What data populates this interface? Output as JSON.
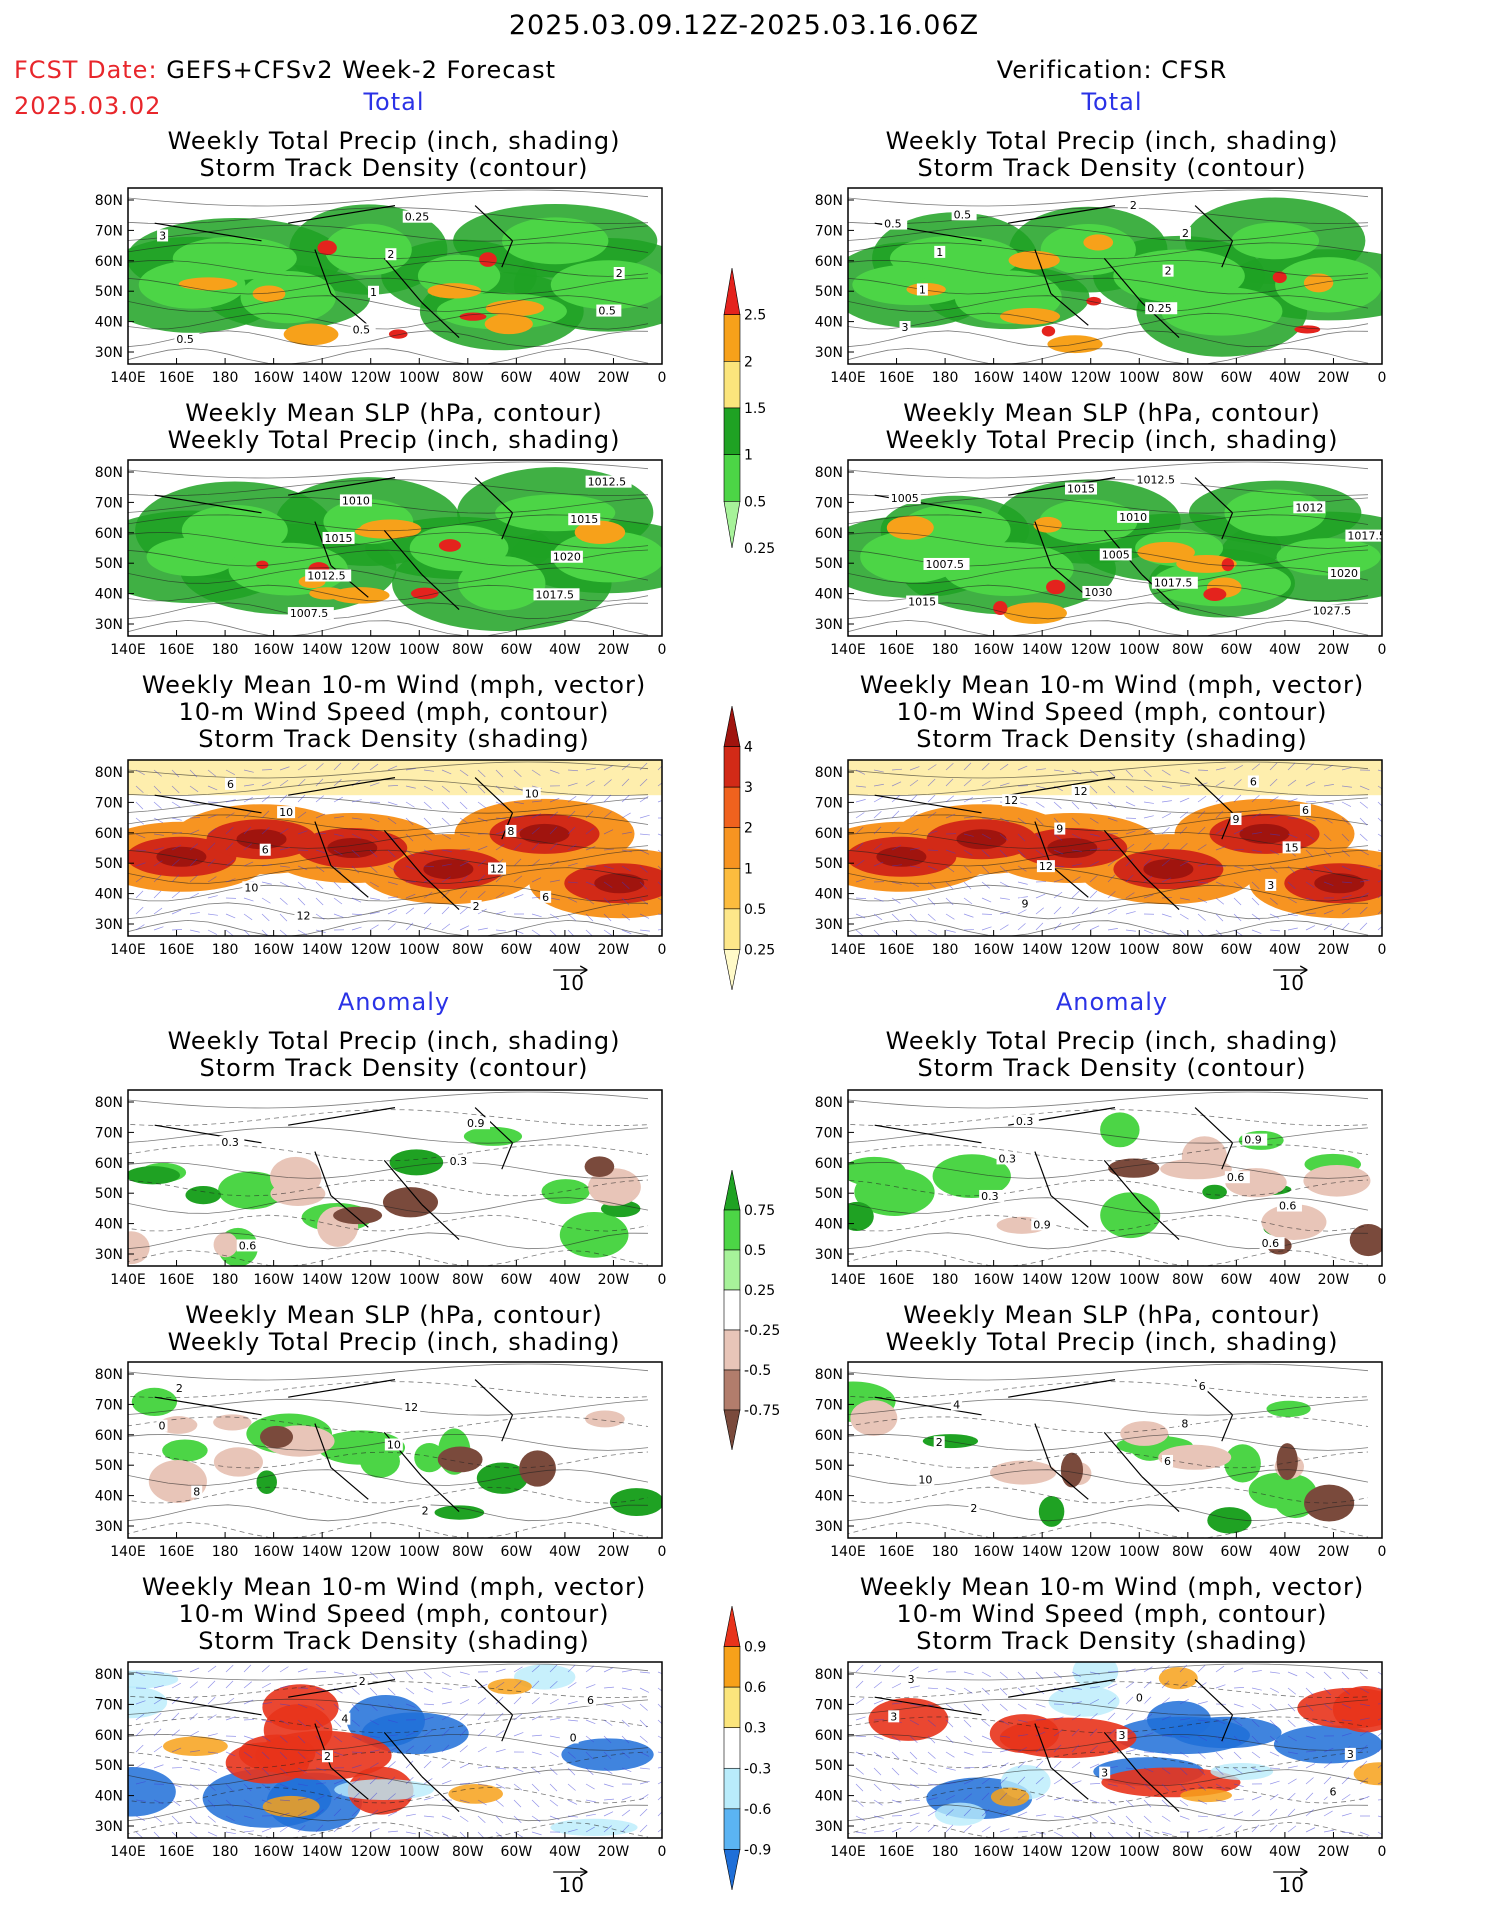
{
  "header": {
    "date_range": "2025.03.09.12Z-2025.03.16.06Z",
    "fcst_label": "FCST Date:",
    "fcst_title": "GEFS+CFSv2 Week-2 Forecast",
    "fcst_date": "2025.03.02",
    "verif_title": "Verification: CFSR"
  },
  "sections": {
    "total": "Total",
    "anomaly": "Anomaly"
  },
  "axis": {
    "lat_labels": [
      "80N",
      "70N",
      "60N",
      "50N",
      "40N",
      "30N"
    ],
    "lon_labels": [
      "140E",
      "160E",
      "180",
      "160W",
      "140W",
      "120W",
      "100W",
      "80W",
      "60W",
      "40W",
      "20W",
      "0"
    ]
  },
  "panel_titles": {
    "precip": [
      "Weekly Total Precip (inch, shading)",
      "Storm Track Density (contour)"
    ],
    "slp": [
      "Weekly Mean SLP (hPa, contour)",
      "Weekly Total Precip (inch, shading)"
    ],
    "wind": [
      "Weekly Mean 10-m Wind (mph, vector)",
      "10-m Wind Speed (mph, contour)",
      "Storm Track Density (shading)"
    ]
  },
  "vector_ref": "10",
  "colorbars": {
    "precip_total": {
      "labels": [
        "2.5",
        "2",
        "1.5",
        "1",
        "0.5",
        "0.25"
      ],
      "colors": [
        "#e4231d",
        "#f7a11a",
        "#fbe57c",
        "#1fa223",
        "#4cd546",
        "#a7f29a"
      ]
    },
    "storm_total": {
      "labels": [
        "4",
        "3",
        "2",
        "1",
        "0.5",
        "0.25"
      ],
      "colors": [
        "#a0140e",
        "#d22a17",
        "#f0621e",
        "#f79421",
        "#fcbc3e",
        "#fde78a",
        "#fffac8"
      ]
    },
    "precip_anom": {
      "labels": [
        "0.75",
        "0.5",
        "0.25",
        "-0.25",
        "-0.5",
        "-0.75"
      ],
      "colors": [
        "#1fa223",
        "#4cd546",
        "#a7f29a",
        "#ffffff",
        "#e8c5b8",
        "#b27d6c",
        "#7a4a3c"
      ]
    },
    "storm_anom": {
      "labels": [
        "0.9",
        "0.6",
        "0.3",
        "-0.3",
        "-0.6",
        "-0.9"
      ],
      "colors": [
        "#e8331b",
        "#f7a11a",
        "#fbe57c",
        "#ffffff",
        "#b9ecfb",
        "#5bb4f3",
        "#1f6fd8"
      ]
    }
  },
  "panels": [
    {
      "id": "fcst-total-precip",
      "kind": "precip",
      "fill": "#4cd546",
      "labels": [
        "0.5",
        "0.5",
        "1",
        "2",
        "2",
        "3",
        "0.25",
        "0.5"
      ]
    },
    {
      "id": "fcst-total-slp",
      "kind": "slp",
      "fill": "#4cd546",
      "labels": [
        "1007.5",
        "1017.5",
        "1012.5",
        "1020",
        "1015",
        "1015",
        "1010",
        "1012.5"
      ]
    },
    {
      "id": "fcst-total-wind",
      "kind": "wind",
      "fill": "#f79421",
      "labels": [
        "6",
        "2",
        "10",
        "12",
        "6",
        "8",
        "10",
        "10",
        "12",
        "6"
      ]
    },
    {
      "id": "verif-total-precip",
      "kind": "precip",
      "fill": "#4cd546",
      "labels": [
        "0.5",
        "2",
        "3",
        "0.25",
        "1",
        "2",
        "1",
        "2",
        "0.5"
      ]
    },
    {
      "id": "verif-total-slp",
      "kind": "slp",
      "fill": "#4cd546",
      "labels": [
        "1012",
        "1015",
        "1027.5",
        "1030",
        "1020",
        "1005",
        "1017.5",
        "1010",
        "1005",
        "1012.5",
        "1015",
        "1017.5",
        "1007.5"
      ]
    },
    {
      "id": "verif-total-wind",
      "kind": "wind",
      "fill": "#f79421",
      "labels": [
        "9",
        "12",
        "6",
        "9",
        "3",
        "12",
        "15",
        "9",
        "6",
        "12"
      ]
    },
    {
      "id": "fcst-anom-precip",
      "kind": "anom",
      "fill": "#ffffff",
      "labels": [
        "0.3",
        "0.3",
        "0.9",
        "0.6"
      ]
    },
    {
      "id": "fcst-anom-slp",
      "kind": "anomslp",
      "fill": "#ffffff",
      "labels": [
        "10",
        "0",
        "12",
        "2",
        "2",
        "8"
      ]
    },
    {
      "id": "fcst-anom-wind",
      "kind": "anomwind",
      "fill": "#ffffff",
      "labels": [
        "2",
        "0",
        "4",
        "6",
        "2"
      ]
    },
    {
      "id": "verif-anom-precip",
      "kind": "anom",
      "fill": "#ffffff",
      "labels": [
        "0.3",
        "0.6",
        "0.3",
        "0.9",
        "0.3",
        "0.6",
        "0.9",
        "0.6"
      ]
    },
    {
      "id": "verif-anom-slp",
      "kind": "anomslp",
      "fill": "#ffffff",
      "labels": [
        "10",
        "6",
        "2",
        "8",
        "4",
        "6",
        "2"
      ]
    },
    {
      "id": "verif-anom-wind",
      "kind": "anomwind",
      "fill": "#ffffff",
      "labels": [
        "6",
        "3",
        "3",
        "3",
        "3",
        "0",
        "3"
      ]
    }
  ]
}
